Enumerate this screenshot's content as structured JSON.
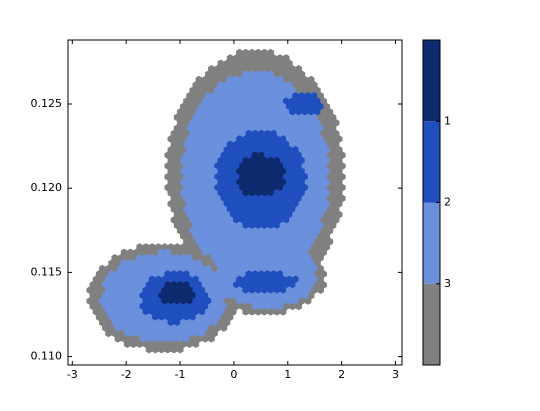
{
  "chart_data": {
    "type": "hexbin",
    "xlim": [
      -3.08,
      3.12
    ],
    "ylim": [
      0.1095,
      0.1288
    ],
    "xticks": [
      -3,
      -2,
      -1,
      0,
      1,
      2,
      3
    ],
    "yticks": [
      {
        "value": 0.11,
        "label": "0.110"
      },
      0.115,
      {
        "value": 0.12,
        "label": "0.120"
      },
      0.125
    ],
    "colorbar": {
      "colors": [
        "#808080",
        "#6a8fdc",
        "#1f4fbf",
        "#0d2a6e"
      ],
      "ticks": [
        3,
        2,
        1
      ]
    },
    "regions": [
      {
        "x": 0.4,
        "y": 0.1208,
        "rx": 1.65,
        "ry": 0.0074,
        "level": 0
      },
      {
        "x": 0.4,
        "y": 0.1207,
        "rx": 1.38,
        "ry": 0.0062,
        "level": 1
      },
      {
        "x": 0.5,
        "y": 0.1205,
        "rx": 0.85,
        "ry": 0.0029,
        "level": 2
      },
      {
        "x": 0.5,
        "y": 0.1207,
        "rx": 0.45,
        "ry": 0.0013,
        "level": 3
      },
      {
        "x": 1.3,
        "y": 0.125,
        "rx": 0.35,
        "ry": 0.0007,
        "level": 2
      },
      {
        "x": -1.3,
        "y": 0.1135,
        "rx": 1.4,
        "ry": 0.0032,
        "level": 0
      },
      {
        "x": -1.3,
        "y": 0.1135,
        "rx": 1.15,
        "ry": 0.0027,
        "level": 1
      },
      {
        "x": -1.1,
        "y": 0.1135,
        "rx": 0.65,
        "ry": 0.0015,
        "level": 2
      },
      {
        "x": -1.05,
        "y": 0.1137,
        "rx": 0.35,
        "ry": 0.0007,
        "level": 3
      },
      {
        "x": 0.6,
        "y": 0.1148,
        "rx": 1.1,
        "ry": 0.0023,
        "level": 0
      },
      {
        "x": 0.6,
        "y": 0.1148,
        "rx": 0.95,
        "ry": 0.0019,
        "level": 1
      },
      {
        "x": 0.6,
        "y": 0.1144,
        "rx": 0.6,
        "ry": 0.0006,
        "level": 2
      }
    ]
  }
}
